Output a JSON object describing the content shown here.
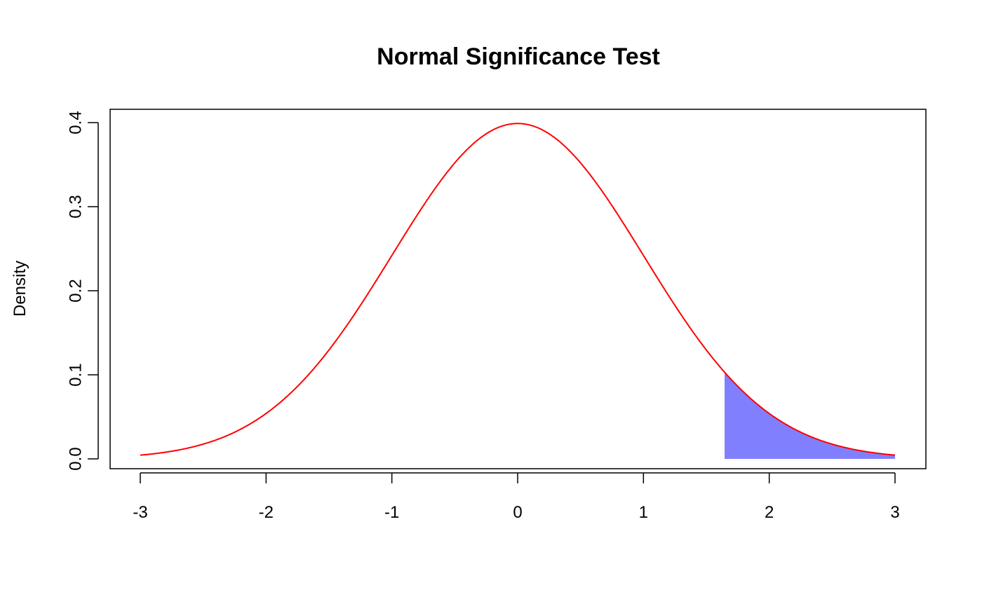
{
  "chart_data": {
    "type": "area",
    "title": "Normal Significance Test",
    "xlabel": "",
    "ylabel": "Density",
    "xlim": [
      -3,
      3
    ],
    "ylim": [
      0,
      0.4
    ],
    "x_ticks": [
      "-3",
      "-2",
      "-1",
      "0",
      "1",
      "2",
      "3"
    ],
    "y_ticks": [
      "0.0",
      "0.1",
      "0.2",
      "0.3",
      "0.4"
    ],
    "grid": false,
    "curve": {
      "distribution": "standard normal density",
      "mean": 0,
      "sd": 1,
      "x": [
        -3,
        -2.5,
        -2,
        -1.5,
        -1,
        -0.5,
        0,
        0.5,
        1,
        1.5,
        1.645,
        2,
        2.5,
        3
      ],
      "y": [
        0.0044,
        0.0175,
        0.054,
        0.1295,
        0.242,
        0.3521,
        0.3989,
        0.3521,
        0.242,
        0.1295,
        0.1031,
        0.054,
        0.0175,
        0.0044
      ]
    },
    "shaded_region": {
      "x_from": 1.645,
      "x_to": 3,
      "description": "right tail"
    },
    "colors": {
      "curve": "#ff0000",
      "fill": "#8080ff",
      "axes": "#000000"
    }
  }
}
